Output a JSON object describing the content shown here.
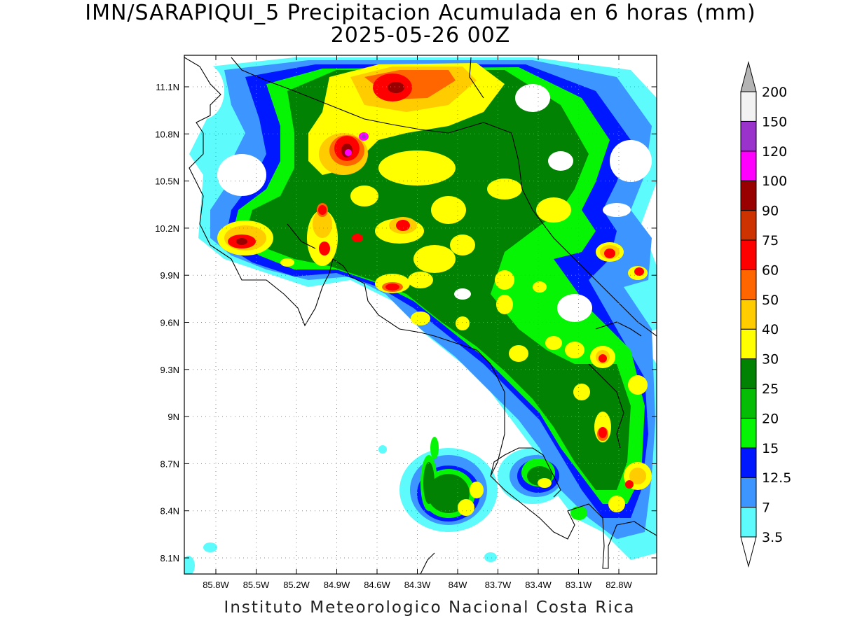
{
  "title": {
    "line1": "IMN/SARAPIQUI_5 Precipitacion Acumulada en 6 horas (mm)",
    "line2": "2025-05-26 00Z"
  },
  "credit": "Instituto Meteorologico Nacional Costa Rica",
  "map": {
    "lon_labels": [
      "85.8W",
      "85.5W",
      "85.2W",
      "84.9W",
      "84.6W",
      "84.3W",
      "84W",
      "83.7W",
      "83.4W",
      "83.1W",
      "82.8W"
    ],
    "lat_labels": [
      "11.1N",
      "10.8N",
      "10.5N",
      "10.2N",
      "9.9N",
      "9.6N",
      "9.3N",
      "9N",
      "8.7N",
      "8.4N",
      "8.1N"
    ],
    "lon_values": [
      -85.8,
      -85.5,
      -85.2,
      -84.9,
      -84.6,
      -84.3,
      -84.0,
      -83.7,
      -83.4,
      -83.1,
      -82.8
    ],
    "lat_values": [
      11.1,
      10.8,
      10.5,
      10.2,
      9.9,
      9.6,
      9.3,
      9.0,
      8.7,
      8.4,
      8.1
    ],
    "grid": "dotted"
  },
  "colorbar": {
    "labels": [
      "3.5",
      "7",
      "12.5",
      "15",
      "20",
      "25",
      "30",
      "40",
      "50",
      "60",
      "75",
      "90",
      "100",
      "120",
      "150",
      "200"
    ],
    "colors": [
      "#ffffff",
      "#5dfbfb",
      "#3d96ff",
      "#0018ff",
      "#05f505",
      "#06bd06",
      "#028202",
      "#ffff00",
      "#ffcc00",
      "#ff6600",
      "#ff0000",
      "#cc3300",
      "#990000",
      "#ff00ff",
      "#9933cc",
      "#f2f2f2",
      "#b4b4b4"
    ]
  }
}
